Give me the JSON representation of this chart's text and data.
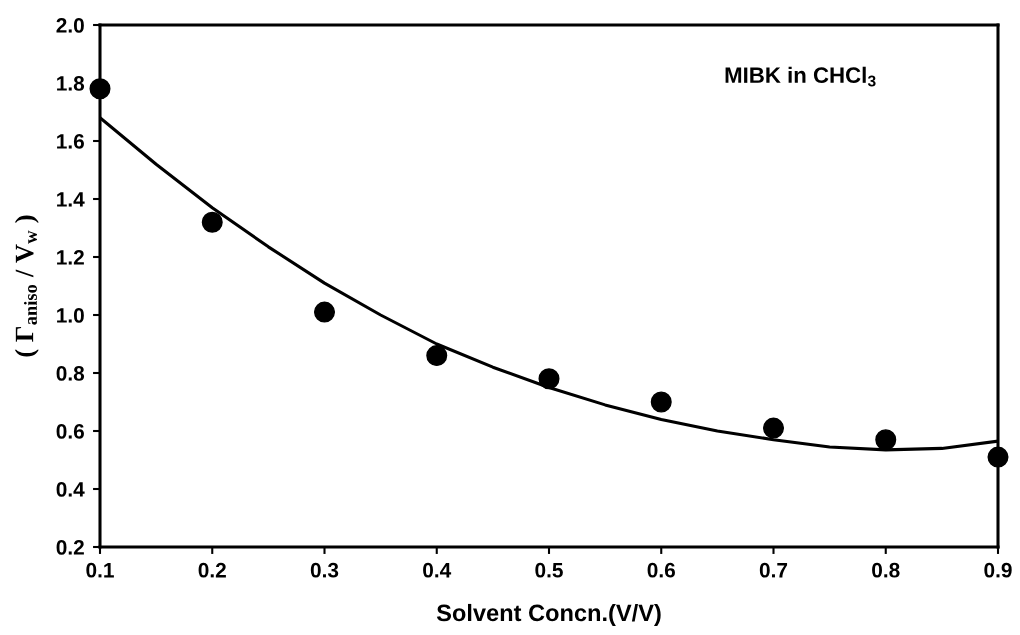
{
  "chart_data": {
    "type": "scatter",
    "xlabel": "Solvent Concn.(V/V)",
    "ylabel": "( Γ$_{aniso}$ / V$_{w}$ )",
    "annotations": [
      "MIBK in CHCl$_{3}$"
    ],
    "series": [
      {
        "color": "#000000",
        "marker": "circle",
        "x": [
          0.1,
          0.2,
          0.3,
          0.4,
          0.5,
          0.6,
          0.7,
          0.8,
          0.9
        ],
        "values": [
          1.78,
          1.32,
          1.01,
          0.86,
          0.78,
          0.7,
          0.61,
          0.57,
          0.51
        ]
      },
      {
        "type": "line",
        "color": "#000000",
        "line_style": "solid",
        "x": [
          0.1,
          0.15,
          0.2,
          0.25,
          0.3,
          0.35,
          0.4,
          0.45,
          0.5,
          0.55,
          0.6,
          0.65,
          0.7,
          0.75,
          0.8,
          0.85,
          0.9
        ],
        "values": [
          1.68,
          1.52,
          1.37,
          1.235,
          1.11,
          1.0,
          0.9,
          0.82,
          0.75,
          0.69,
          0.64,
          0.6,
          0.57,
          0.545,
          0.535,
          0.54,
          0.565
        ]
      }
    ],
    "xlim": [
      0.1,
      0.9
    ],
    "xticks": [
      0.1,
      0.2,
      0.3,
      0.4,
      0.5,
      0.6,
      0.7,
      0.8,
      0.9
    ],
    "ylim": [
      0.2,
      2.0
    ],
    "yticks": [
      {
        "value": 0.2,
        "label": "0.2"
      },
      {
        "value": 0.4,
        "label": "0.4"
      },
      {
        "value": 0.6,
        "label": "0.6"
      },
      {
        "value": 0.8,
        "label": "0.8"
      },
      {
        "value": 1.0,
        "label": "1.0"
      },
      {
        "value": 1.2,
        "label": "1.2"
      },
      {
        "value": 1.4,
        "label": "1.4"
      },
      {
        "value": 1.6,
        "label": "1.6"
      },
      {
        "value": 1.8,
        "label": "1.8"
      },
      {
        "value": 2.0,
        "label": "2.0"
      }
    ],
    "grid": false,
    "legend": false
  }
}
